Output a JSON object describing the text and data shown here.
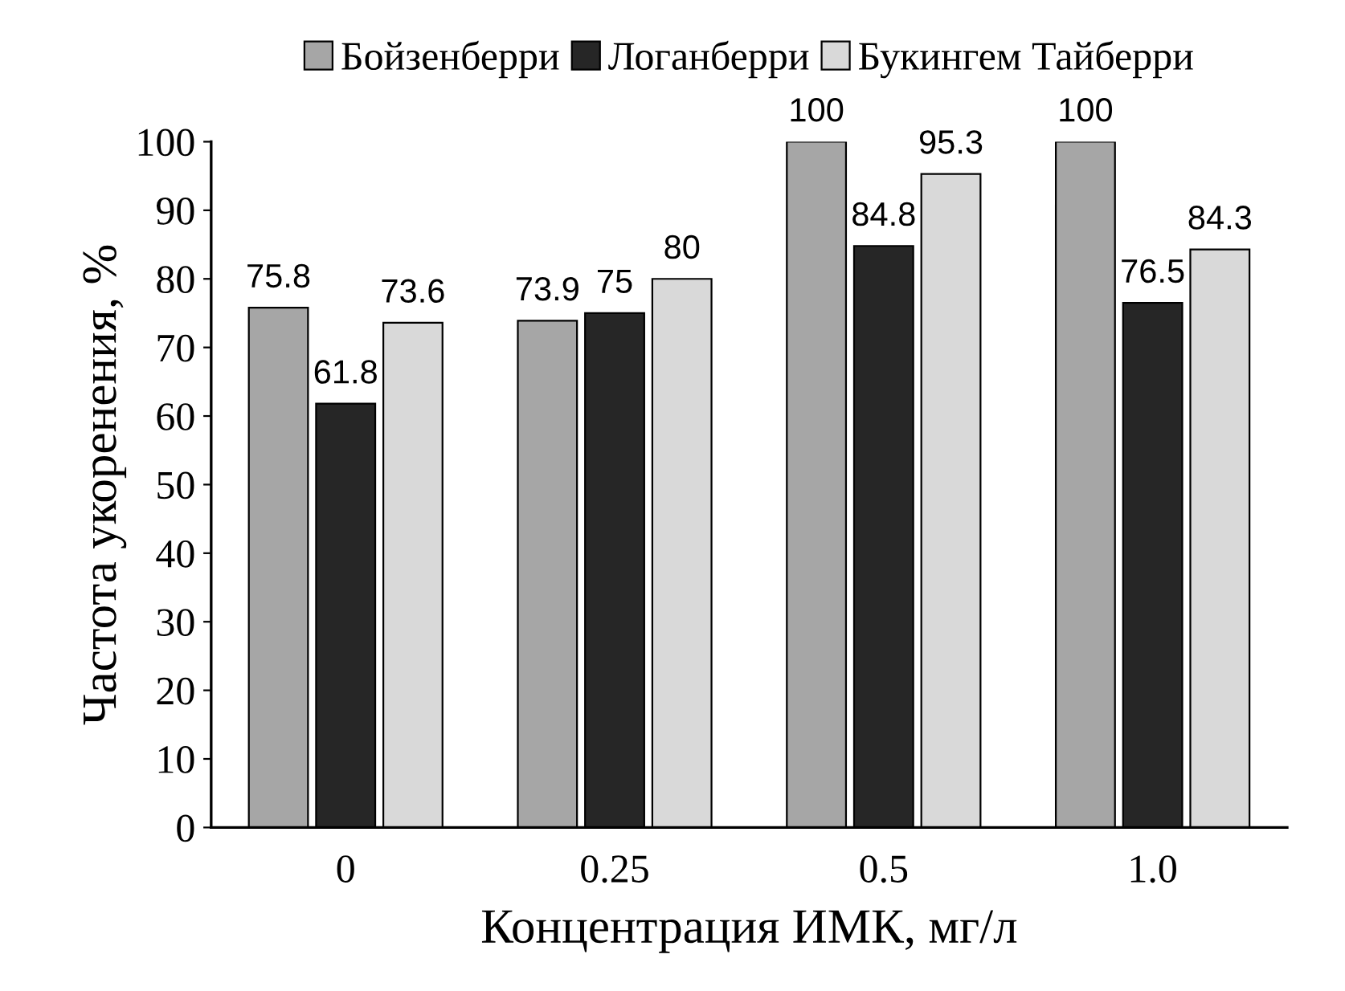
{
  "chart_data": {
    "type": "bar",
    "xlabel": "Концентрация ИМК, мг/л",
    "ylabel": "Частота укоренения, %",
    "categories": [
      "0",
      "0.25",
      "0.5",
      "1.0"
    ],
    "series": [
      {
        "name": "Бойзенберри",
        "color": "#a6a6a6",
        "values": [
          75.8,
          73.9,
          100,
          100
        ]
      },
      {
        "name": "Логанберри",
        "color": "#262626",
        "values": [
          61.8,
          75,
          84.8,
          76.5
        ]
      },
      {
        "name": "Букингем Тайберри",
        "color": "#d9d9d9",
        "values": [
          73.6,
          80,
          95.3,
          84.3
        ]
      }
    ],
    "ylim": [
      0,
      100
    ],
    "yticks": [
      0,
      10,
      20,
      30,
      40,
      50,
      60,
      70,
      80,
      90,
      100
    ],
    "data_labels": true,
    "legend": "top",
    "grid": false
  }
}
